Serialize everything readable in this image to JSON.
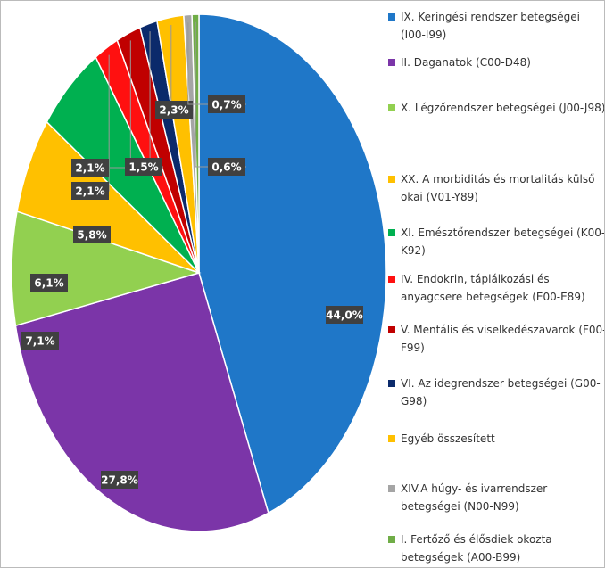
{
  "chart_data": {
    "type": "pie",
    "categories": [
      "IX. Keringési rendszer betegségei (I00-I99)",
      "II. Daganatok (C00-D48)",
      "X. Légzőrendszer betegségei (J00-J98)",
      "XX. A morbiditás és mortalitás külső okai (V01-Y89)",
      "XI. Emésztőrendszer betegségei (K00-K92)",
      "IV. Endokrin, táplálkozási és anyagcsere betegségek (E00-E89)",
      "V. Mentális és viselkedészavarok (F00-F99)",
      "VI. Az idegrendszer betegségei (G00-G98)",
      "Egyéb összesített",
      "XIV.A húgy- és ivarrendszer betegségei (N00-N99)",
      "I. Fertőző és élősdiek okozta betegségek  (A00-B99)"
    ],
    "values": [
      44.0,
      27.8,
      7.1,
      6.1,
      5.8,
      2.1,
      2.1,
      1.5,
      2.3,
      0.7,
      0.6
    ],
    "value_labels": [
      "44,0%",
      "27,8%",
      "7,1%",
      "6,1%",
      "5,8%",
      "2,1%",
      "2,1%",
      "1,5%",
      "2,3%",
      "0,7%",
      "0,6%"
    ],
    "colors": [
      "#1f77c8",
      "#7b35a8",
      "#92d050",
      "#ffc000",
      "#00b050",
      "#ff1010",
      "#c00000",
      "#0b2a6b",
      "#ffc000",
      "#a5a5a5",
      "#70ad47"
    ],
    "legend": "right"
  }
}
